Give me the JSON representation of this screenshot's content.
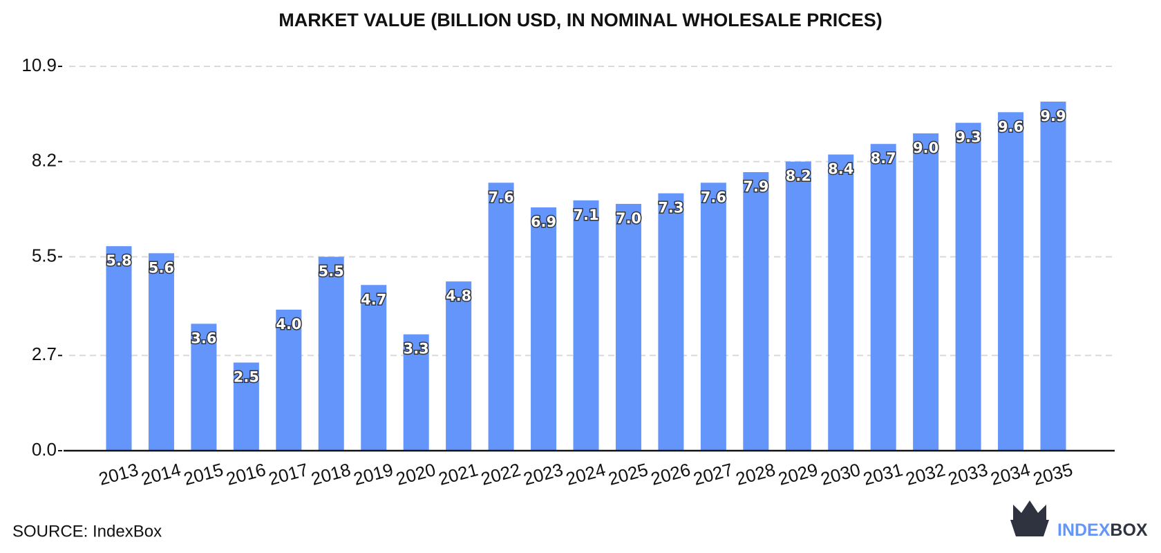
{
  "chart_data": {
    "type": "bar",
    "title": "MARKET VALUE (BILLION USD, IN NOMINAL WHOLESALE PRICES)",
    "categories": [
      "2013",
      "2014",
      "2015",
      "2016",
      "2017",
      "2018",
      "2019",
      "2020",
      "2021",
      "2022",
      "2023",
      "2024",
      "2025",
      "2026",
      "2027",
      "2028",
      "2029",
      "2030",
      "2031",
      "2032",
      "2033",
      "2034",
      "2035"
    ],
    "values": [
      5.8,
      5.6,
      3.6,
      2.5,
      4.0,
      5.5,
      4.7,
      3.3,
      4.8,
      7.6,
      6.9,
      7.1,
      7.0,
      7.3,
      7.6,
      7.9,
      8.2,
      8.4,
      8.7,
      9.0,
      9.3,
      9.6,
      9.9
    ],
    "value_labels": [
      "5.8",
      "5.6",
      "3.6",
      "2.5",
      "4.0",
      "5.5",
      "4.7",
      "3.3",
      "4.8",
      "7.6",
      "6.9",
      "7.1",
      "7.0",
      "7.3",
      "7.6",
      "7.9",
      "8.2",
      "8.4",
      "8.7",
      "9.0",
      "9.3",
      "9.6",
      "9.9"
    ],
    "color": "#6495fa",
    "ylim": [
      0,
      10.9
    ],
    "yticks": [
      {
        "value": 0,
        "label": "0.0"
      },
      2.7,
      5.5,
      8.2,
      10.9
    ],
    "grid": true,
    "source": "SOURCE: IndexBox"
  },
  "brand": {
    "part1": "INDEX",
    "part2": "BOX"
  }
}
